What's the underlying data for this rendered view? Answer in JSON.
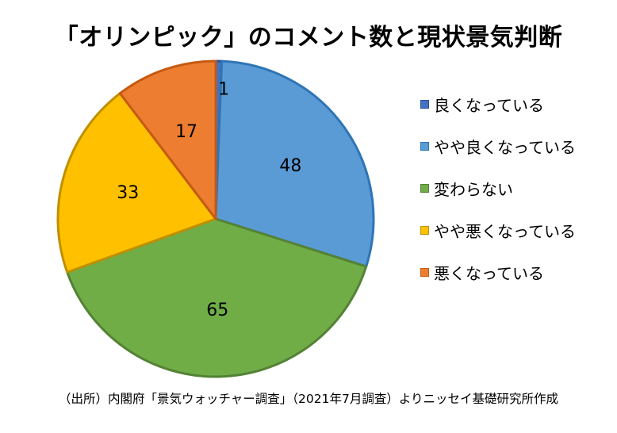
{
  "chart_data": {
    "type": "pie",
    "title": "「オリンピック」のコメント数と現状景気判断",
    "categories": [
      "良くなっている",
      "やや良くなっている",
      "変わらない",
      "やや悪くなっている",
      "悪くなっている"
    ],
    "values": [
      1,
      48,
      65,
      33,
      17
    ],
    "colors": [
      "#4472C4",
      "#5B9BD5",
      "#70AD47",
      "#FFC000",
      "#ED7D31"
    ],
    "border_colors": [
      "#2F5597",
      "#2E75B6",
      "#548235",
      "#BF9000",
      "#C55A11"
    ],
    "legend_position": "right",
    "start_angle": "top, clockwise"
  },
  "source_note": "（出所）内閣府「景気ウォッチャー調査」（2021年7月調査）よりニッセイ基礎研究所作成"
}
